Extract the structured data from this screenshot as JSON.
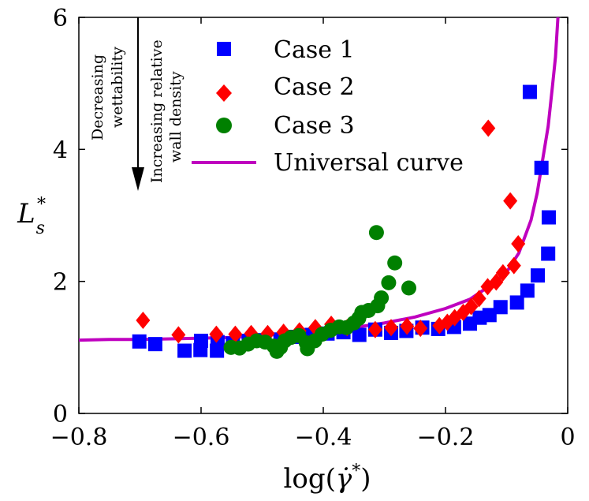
{
  "chart_data": {
    "type": "scatter",
    "xlim": [
      -0.8,
      0
    ],
    "ylim": [
      0,
      6
    ],
    "xticks": [
      "−0.8",
      "−0.6",
      "−0.4",
      "−0.2",
      "0"
    ],
    "yticks": [
      "0",
      "2",
      "4",
      "6"
    ],
    "grid": false,
    "legend_position": "top-center",
    "annotation_left": [
      "Decreasing",
      "wettability"
    ],
    "annotation_right": [
      "Increasing relative",
      "wall density"
    ],
    "series": [
      {
        "name": "Case 1",
        "marker": "square",
        "color": "#0000ff",
        "points": [
          [
            -0.701,
            1.09
          ],
          [
            -0.675,
            1.05
          ],
          [
            -0.627,
            0.95
          ],
          [
            -0.601,
            0.96
          ],
          [
            -0.6,
            1.1
          ],
          [
            -0.574,
            0.95
          ],
          [
            -0.573,
            1.08
          ],
          [
            -0.548,
            1.06
          ],
          [
            -0.522,
            1.1
          ],
          [
            -0.496,
            1.11
          ],
          [
            -0.47,
            1.12
          ],
          [
            -0.445,
            1.16
          ],
          [
            -0.419,
            1.19
          ],
          [
            -0.393,
            1.21
          ],
          [
            -0.367,
            1.23
          ],
          [
            -0.341,
            1.19
          ],
          [
            -0.315,
            1.27
          ],
          [
            -0.289,
            1.22
          ],
          [
            -0.264,
            1.25
          ],
          [
            -0.238,
            1.3
          ],
          [
            -0.212,
            1.28
          ],
          [
            -0.186,
            1.31
          ],
          [
            -0.16,
            1.36
          ],
          [
            -0.144,
            1.45
          ],
          [
            -0.128,
            1.49
          ],
          [
            -0.11,
            1.61
          ],
          [
            -0.083,
            1.68
          ],
          [
            -0.066,
            1.86
          ],
          [
            -0.049,
            2.09
          ],
          [
            -0.032,
            2.42
          ],
          [
            -0.031,
            2.97
          ],
          [
            -0.043,
            3.72
          ],
          [
            -0.062,
            4.87
          ]
        ]
      },
      {
        "name": "Case 2",
        "marker": "diamond",
        "color": "#ff0000",
        "points": [
          [
            -0.695,
            1.41
          ],
          [
            -0.637,
            1.19
          ],
          [
            -0.575,
            1.2
          ],
          [
            -0.544,
            1.2
          ],
          [
            -0.518,
            1.21
          ],
          [
            -0.491,
            1.21
          ],
          [
            -0.465,
            1.23
          ],
          [
            -0.439,
            1.25
          ],
          [
            -0.413,
            1.3
          ],
          [
            -0.387,
            1.35
          ],
          [
            -0.361,
            1.3
          ],
          [
            -0.315,
            1.27
          ],
          [
            -0.289,
            1.3
          ],
          [
            -0.263,
            1.32
          ],
          [
            -0.241,
            1.29
          ],
          [
            -0.21,
            1.33
          ],
          [
            -0.197,
            1.38
          ],
          [
            -0.185,
            1.45
          ],
          [
            -0.171,
            1.53
          ],
          [
            -0.158,
            1.62
          ],
          [
            -0.145,
            1.74
          ],
          [
            -0.131,
            1.92
          ],
          [
            -0.117,
            1.99
          ],
          [
            -0.106,
            2.13
          ],
          [
            -0.088,
            2.24
          ],
          [
            -0.081,
            2.57
          ],
          [
            -0.094,
            3.22
          ],
          [
            -0.13,
            4.32
          ]
        ]
      },
      {
        "name": "Case 3",
        "marker": "circle",
        "color": "#008000",
        "points": [
          [
            -0.551,
            1.0
          ],
          [
            -0.537,
            0.99
          ],
          [
            -0.523,
            1.05
          ],
          [
            -0.509,
            1.1
          ],
          [
            -0.495,
            1.08
          ],
          [
            -0.481,
            1.02
          ],
          [
            -0.476,
            0.94
          ],
          [
            -0.47,
            1.0
          ],
          [
            -0.463,
            1.1
          ],
          [
            -0.453,
            1.15
          ],
          [
            -0.44,
            1.18
          ],
          [
            -0.428,
            1.07
          ],
          [
            -0.426,
            0.98
          ],
          [
            -0.414,
            1.1
          ],
          [
            -0.402,
            1.2
          ],
          [
            -0.388,
            1.26
          ],
          [
            -0.374,
            1.31
          ],
          [
            -0.362,
            1.3
          ],
          [
            -0.35,
            1.37
          ],
          [
            -0.342,
            1.44
          ],
          [
            -0.337,
            1.53
          ],
          [
            -0.326,
            1.56
          ],
          [
            -0.311,
            1.63
          ],
          [
            -0.305,
            1.75
          ],
          [
            -0.293,
            1.98
          ],
          [
            -0.283,
            2.28
          ],
          [
            -0.26,
            1.9
          ],
          [
            -0.313,
            2.74
          ]
        ]
      },
      {
        "name": "Universal curve",
        "marker": "line",
        "color": "#bf00bf",
        "points": [
          [
            -0.8,
            1.11
          ],
          [
            -0.75,
            1.12
          ],
          [
            -0.7,
            1.12
          ],
          [
            -0.65,
            1.13
          ],
          [
            -0.6,
            1.14
          ],
          [
            -0.55,
            1.15
          ],
          [
            -0.5,
            1.18
          ],
          [
            -0.45,
            1.21
          ],
          [
            -0.4,
            1.25
          ],
          [
            -0.35,
            1.3
          ],
          [
            -0.3,
            1.37
          ],
          [
            -0.25,
            1.46
          ],
          [
            -0.2,
            1.59
          ],
          [
            -0.16,
            1.73
          ],
          [
            -0.12,
            1.98
          ],
          [
            -0.1,
            2.14
          ],
          [
            -0.08,
            2.43
          ],
          [
            -0.06,
            2.93
          ],
          [
            -0.05,
            3.34
          ],
          [
            -0.04,
            3.9
          ],
          [
            -0.032,
            4.35
          ],
          [
            -0.025,
            4.95
          ],
          [
            -0.02,
            5.4
          ],
          [
            -0.016,
            6.0
          ]
        ]
      }
    ]
  }
}
